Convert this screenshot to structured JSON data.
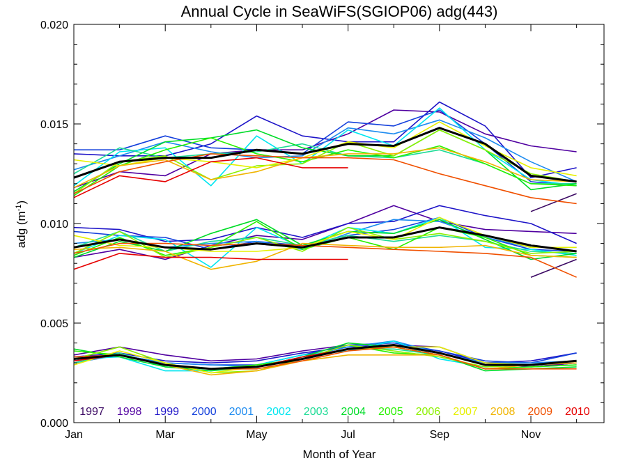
{
  "chart_data": {
    "type": "line",
    "title": "Annual Cycle in SeaWiFS(SGIOP06) adg(443)",
    "xlabel": "Month of Year",
    "ylabel": "adg (m⁻¹)",
    "ylabel_main": "adg (m",
    "ylabel_sup": "-1",
    "ylabel_close": ")",
    "xlim": [
      1,
      12.6
    ],
    "ylim": [
      0.0,
      0.02
    ],
    "x_ticks": [
      {
        "value": 1,
        "label": "Jan"
      },
      {
        "value": 3,
        "label": "Mar"
      },
      {
        "value": 5,
        "label": "May"
      },
      {
        "value": 7,
        "label": "Jul"
      },
      {
        "value": 9,
        "label": "Sep"
      },
      {
        "value": 11,
        "label": "Nov"
      }
    ],
    "y_ticks": [
      {
        "value": 0.0,
        "label": "0.000"
      },
      {
        "value": 0.005,
        "label": "0.005"
      },
      {
        "value": 0.01,
        "label": "0.010"
      },
      {
        "value": 0.015,
        "label": "0.015"
      },
      {
        "value": 0.02,
        "label": "0.020"
      }
    ],
    "legend_placement": "bottom",
    "years": [
      "1997",
      "1998",
      "1999",
      "2000",
      "2001",
      "2002",
      "2003",
      "2004",
      "2005",
      "2006",
      "2007",
      "2008",
      "2009",
      "2010"
    ],
    "x": [
      1,
      2,
      3,
      4,
      5,
      6,
      7,
      8,
      9,
      10,
      11,
      12
    ],
    "series": [
      {
        "name": "1997",
        "color": "#3c0a64",
        "upper": [
          null,
          null,
          null,
          null,
          null,
          null,
          null,
          null,
          null,
          null,
          0.0106,
          0.0115
        ],
        "middle": [
          null,
          null,
          null,
          null,
          null,
          null,
          null,
          null,
          null,
          null,
          0.0073,
          0.0082
        ],
        "lower": [
          null,
          null,
          null,
          null,
          null,
          null,
          null,
          null,
          null,
          null,
          0.0028,
          0.003
        ]
      },
      {
        "name": "1998",
        "color": "#5000a0",
        "upper": [
          0.0118,
          0.0126,
          0.0124,
          0.0135,
          0.0137,
          0.0137,
          0.0145,
          0.0157,
          0.0156,
          0.0145,
          0.0139,
          0.0136
        ],
        "middle": [
          0.0083,
          0.0087,
          0.0082,
          0.0089,
          0.0094,
          0.0092,
          0.01,
          0.0109,
          0.0101,
          0.0097,
          0.0096,
          0.0095
        ],
        "lower": [
          0.0034,
          0.0038,
          0.0034,
          0.0031,
          0.0032,
          0.0036,
          0.0039,
          0.0039,
          0.0038,
          0.003,
          0.0028,
          0.003
        ]
      },
      {
        "name": "1999",
        "color": "#1e14c8",
        "upper": [
          0.0135,
          0.0134,
          0.0134,
          0.014,
          0.0154,
          0.0144,
          0.0141,
          0.0141,
          0.0161,
          0.0149,
          0.0123,
          0.0128
        ],
        "middle": [
          0.0098,
          0.0097,
          0.0091,
          0.0092,
          0.0098,
          0.0093,
          0.01,
          0.0101,
          0.0109,
          0.0104,
          0.01,
          0.009
        ],
        "lower": [
          0.0033,
          0.0035,
          0.0031,
          0.003,
          0.0031,
          0.0035,
          0.0038,
          0.0039,
          0.0036,
          0.003,
          0.0031,
          0.0035
        ]
      },
      {
        "name": "2000",
        "color": "#1440dc",
        "upper": [
          0.0137,
          0.0137,
          0.0144,
          0.0138,
          0.0137,
          0.0135,
          0.0151,
          0.0149,
          0.0157,
          0.014,
          0.0121,
          0.0119
        ],
        "middle": [
          0.0096,
          0.0094,
          0.0093,
          0.0087,
          0.0091,
          0.0089,
          0.0094,
          0.0097,
          0.0103,
          0.0093,
          0.0087,
          0.0086
        ],
        "lower": [
          0.0031,
          0.0034,
          0.003,
          0.0029,
          0.0029,
          0.0034,
          0.0039,
          0.004,
          0.0036,
          0.0031,
          0.003,
          0.0035
        ]
      },
      {
        "name": "2001",
        "color": "#1e8cf0",
        "upper": [
          0.0127,
          0.0134,
          0.0141,
          0.0136,
          0.0133,
          0.0134,
          0.0148,
          0.0145,
          0.0152,
          0.0143,
          0.0131,
          0.0121
        ],
        "middle": [
          0.009,
          0.0092,
          0.0088,
          0.009,
          0.0091,
          0.0087,
          0.0095,
          0.0102,
          0.0101,
          0.0093,
          0.0088,
          0.0088
        ],
        "lower": [
          0.003,
          0.0034,
          0.003,
          0.0029,
          0.0028,
          0.0033,
          0.0038,
          0.0041,
          0.0035,
          0.003,
          0.003,
          0.0031
        ]
      },
      {
        "name": "2002",
        "color": "#00e6f0",
        "upper": [
          0.0119,
          0.0136,
          0.0138,
          0.0119,
          0.0144,
          0.013,
          0.0147,
          0.0139,
          0.0158,
          0.0137,
          0.0122,
          0.0119
        ],
        "middle": [
          0.0085,
          0.0094,
          0.0092,
          0.0078,
          0.0098,
          0.0088,
          0.0098,
          0.0095,
          0.0103,
          0.0088,
          0.0087,
          0.0084
        ],
        "lower": [
          0.0032,
          0.0033,
          0.0026,
          0.0026,
          0.0029,
          0.0034,
          0.0036,
          0.0041,
          0.0032,
          0.0028,
          0.0029,
          0.0031
        ]
      },
      {
        "name": "2003",
        "color": "#1edc96",
        "upper": [
          0.0125,
          0.0138,
          0.0133,
          0.0135,
          0.0136,
          0.014,
          0.0134,
          0.0133,
          0.0137,
          0.013,
          0.012,
          0.012
        ],
        "middle": [
          0.0088,
          0.0096,
          0.0086,
          0.0091,
          0.0093,
          0.0089,
          0.0094,
          0.0091,
          0.0094,
          0.0091,
          0.0086,
          0.0085
        ],
        "lower": [
          0.003,
          0.0035,
          0.0028,
          0.0027,
          0.0028,
          0.0033,
          0.0037,
          0.0037,
          0.0034,
          0.0027,
          0.0028,
          0.0029
        ]
      },
      {
        "name": "2004",
        "color": "#00dc28",
        "upper": [
          0.0116,
          0.013,
          0.0141,
          0.0143,
          0.0147,
          0.0138,
          0.0134,
          0.0134,
          0.0147,
          0.0137,
          0.0117,
          0.012
        ],
        "middle": [
          0.0083,
          0.0091,
          0.0086,
          0.0095,
          0.0102,
          0.0089,
          0.0096,
          0.0095,
          0.0102,
          0.0092,
          0.0082,
          0.0085
        ],
        "lower": [
          0.0037,
          0.0033,
          0.0028,
          0.0026,
          0.0028,
          0.0033,
          0.004,
          0.0038,
          0.0034,
          0.0026,
          0.0027,
          0.0028
        ]
      },
      {
        "name": "2005",
        "color": "#28f000",
        "upper": [
          0.0114,
          0.0129,
          0.0137,
          0.0143,
          0.0135,
          0.0131,
          0.0137,
          0.0133,
          0.0139,
          0.013,
          0.012,
          0.0119
        ],
        "middle": [
          0.0084,
          0.0093,
          0.0084,
          0.0088,
          0.0101,
          0.0087,
          0.0093,
          0.0087,
          0.0098,
          0.0093,
          0.0084,
          0.0083
        ],
        "lower": [
          0.0036,
          0.0034,
          0.0029,
          0.0027,
          0.0029,
          0.0032,
          0.0039,
          0.0035,
          0.0034,
          0.0027,
          0.0028,
          0.0029
        ]
      },
      {
        "name": "2006",
        "color": "#8cf000",
        "upper": [
          0.0115,
          0.0131,
          0.0134,
          0.0122,
          0.0129,
          0.013,
          0.0141,
          0.0134,
          0.0147,
          0.0137,
          0.0125,
          0.0121
        ],
        "middle": [
          0.0085,
          0.0096,
          0.0083,
          0.0088,
          0.0093,
          0.0086,
          0.0098,
          0.0092,
          0.0095,
          0.0091,
          0.0085,
          0.0086
        ],
        "lower": [
          0.0032,
          0.0038,
          0.003,
          0.0025,
          0.0026,
          0.0032,
          0.0039,
          0.0036,
          0.0033,
          0.0028,
          0.0029,
          0.0031
        ]
      },
      {
        "name": "2007",
        "color": "#e6f000",
        "upper": [
          0.0132,
          0.0129,
          0.0133,
          0.0131,
          0.0128,
          0.0133,
          0.0141,
          0.0138,
          0.0151,
          0.0139,
          0.0128,
          0.0124
        ],
        "middle": [
          0.0094,
          0.0089,
          0.0088,
          0.0086,
          0.0086,
          0.0088,
          0.0096,
          0.0092,
          0.0103,
          0.0094,
          0.0088,
          0.0088
        ],
        "lower": [
          0.0029,
          0.0036,
          0.003,
          0.0025,
          0.0028,
          0.0032,
          0.0037,
          0.0038,
          0.0038,
          0.003,
          0.0029,
          0.0031
        ]
      },
      {
        "name": "2008",
        "color": "#f0b400",
        "upper": [
          0.0118,
          0.0129,
          0.0132,
          0.0122,
          0.0126,
          0.0133,
          0.0135,
          0.0135,
          0.0138,
          0.0131,
          0.0122,
          0.0121
        ],
        "middle": [
          0.0087,
          0.0088,
          0.0086,
          0.0077,
          0.0081,
          0.009,
          0.0089,
          0.0088,
          0.0088,
          0.0089,
          0.0084,
          0.0083
        ],
        "lower": [
          0.0032,
          0.0034,
          0.0029,
          0.0024,
          0.0026,
          0.0031,
          0.0034,
          0.0034,
          0.0034,
          0.0027,
          0.0029,
          0.003
        ]
      },
      {
        "name": "2009",
        "color": "#f05000",
        "upper": [
          0.0115,
          0.0126,
          0.0131,
          0.0135,
          0.0134,
          0.0133,
          0.0133,
          0.0132,
          0.0125,
          0.0119,
          0.0113,
          0.011
        ],
        "middle": [
          0.0085,
          0.009,
          0.009,
          0.0089,
          0.009,
          0.0089,
          0.0088,
          0.0087,
          0.0086,
          0.0085,
          0.0083,
          0.0073
        ],
        "lower": [
          0.0033,
          0.0034,
          0.0029,
          0.0027,
          0.0027,
          0.0031,
          0.0036,
          0.0038,
          0.0034,
          0.0027,
          0.0027,
          0.0027
        ]
      },
      {
        "name": "2010",
        "color": "#e60000",
        "upper": [
          0.0113,
          0.0124,
          0.0121,
          0.0131,
          0.0133,
          0.0128,
          0.0128,
          null,
          null,
          null,
          null,
          null
        ],
        "middle": [
          0.0077,
          0.0085,
          0.0083,
          0.0083,
          0.0082,
          0.0082,
          0.0082,
          null,
          null,
          null,
          null,
          null
        ],
        "lower": [
          0.0031,
          0.0034,
          0.0029,
          0.0027,
          0.0028,
          0.0033,
          0.0037,
          null,
          null,
          null,
          null,
          null
        ]
      }
    ],
    "mean": {
      "color": "#000000",
      "upper": [
        0.0123,
        0.0131,
        0.0133,
        0.0133,
        0.0137,
        0.0135,
        0.014,
        0.0139,
        0.0148,
        0.014,
        0.0124,
        0.0121
      ],
      "middle": [
        0.0088,
        0.0092,
        0.0088,
        0.0087,
        0.009,
        0.0088,
        0.0093,
        0.0093,
        0.0098,
        0.0094,
        0.0089,
        0.0086
      ],
      "lower": [
        0.0032,
        0.0034,
        0.0029,
        0.0027,
        0.0028,
        0.0032,
        0.0037,
        0.0039,
        0.0035,
        0.0029,
        0.0029,
        0.0031
      ]
    }
  }
}
